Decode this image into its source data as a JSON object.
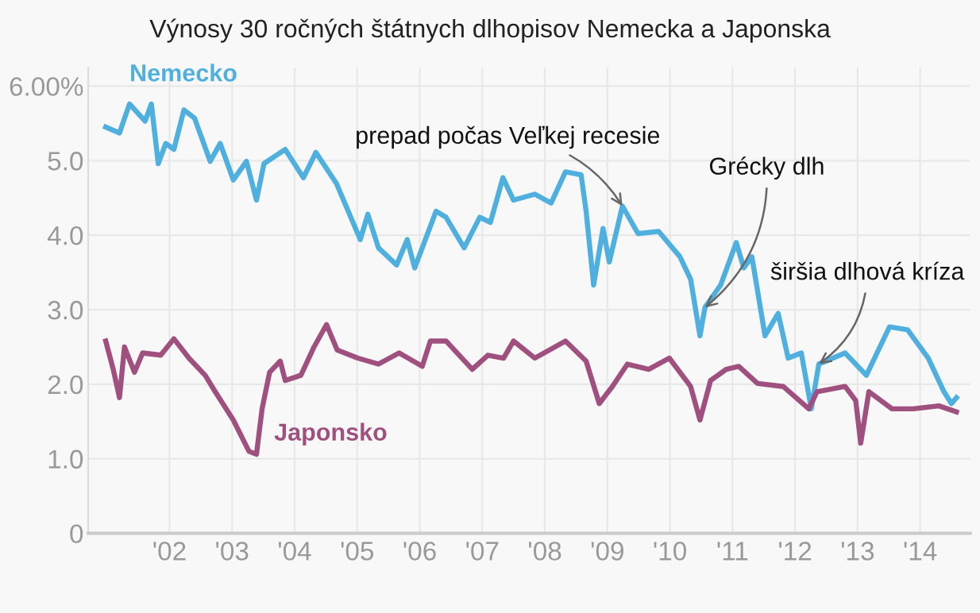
{
  "chart_data": {
    "type": "line",
    "title": "Výnosy 30 ročných štátnych dlhopisov Nemecka a Japonska",
    "series": [
      {
        "name": "Nemecko",
        "color": "#4fb0e0",
        "x": [
          2000.98,
          2001.2,
          2001.36,
          2001.61,
          2001.71,
          2001.82,
          2001.94,
          2002.07,
          2002.23,
          2002.4,
          2002.65,
          2002.81,
          2003.02,
          2003.23,
          2003.39,
          2003.51,
          2003.85,
          2004.14,
          2004.34,
          2004.67,
          2005.05,
          2005.17,
          2005.34,
          2005.63,
          2005.8,
          2005.92,
          2006.26,
          2006.42,
          2006.71,
          2006.96,
          2007.13,
          2007.33,
          2007.5,
          2007.84,
          2008.1,
          2008.33,
          2008.58,
          2008.66,
          2008.78,
          2008.93,
          2009.03,
          2009.24,
          2009.49,
          2009.82,
          2010.16,
          2010.33,
          2010.48,
          2010.56,
          2010.81,
          2011.06,
          2011.18,
          2011.31,
          2011.52,
          2011.73,
          2011.89,
          2012.1,
          2012.26,
          2012.38,
          2012.8,
          2013.14,
          2013.51,
          2013.8,
          2014.13,
          2014.38,
          2014.5,
          2014.58
        ],
        "values": [
          5.45,
          5.37,
          5.76,
          5.53,
          5.76,
          4.96,
          5.23,
          5.15,
          5.68,
          5.57,
          4.99,
          5.23,
          4.74,
          4.99,
          4.47,
          4.96,
          5.15,
          4.77,
          5.11,
          4.69,
          3.94,
          4.28,
          3.83,
          3.6,
          3.94,
          3.56,
          4.32,
          4.24,
          3.83,
          4.24,
          4.17,
          4.77,
          4.47,
          4.55,
          4.43,
          4.85,
          4.81,
          4.32,
          3.33,
          4.09,
          3.64,
          4.39,
          4.02,
          4.05,
          3.71,
          3.41,
          2.65,
          3.03,
          3.33,
          3.9,
          3.56,
          3.71,
          2.65,
          2.95,
          2.35,
          2.42,
          1.67,
          2.27,
          2.42,
          2.12,
          2.77,
          2.73,
          2.35,
          1.9,
          1.74,
          1.82
        ]
      },
      {
        "name": "Japonsko",
        "color": "#a0507f",
        "x": [
          2000.98,
          2001.1,
          2001.2,
          2001.28,
          2001.44,
          2001.57,
          2001.86,
          2002.07,
          2002.31,
          2002.57,
          2002.73,
          2003.02,
          2003.27,
          2003.39,
          2003.48,
          2003.6,
          2003.77,
          2003.85,
          2004.1,
          2004.31,
          2004.51,
          2004.68,
          2005.01,
          2005.34,
          2005.67,
          2006.04,
          2006.17,
          2006.42,
          2006.84,
          2007.09,
          2007.34,
          2007.5,
          2007.84,
          2008.33,
          2008.66,
          2008.87,
          2009.08,
          2009.32,
          2009.66,
          2009.99,
          2010.33,
          2010.48,
          2010.65,
          2010.9,
          2011.1,
          2011.4,
          2011.81,
          2012.22,
          2012.35,
          2012.8,
          2012.97,
          2013.05,
          2013.18,
          2013.55,
          2013.89,
          2014.3,
          2014.58
        ],
        "values": [
          2.58,
          2.2,
          1.82,
          2.5,
          2.16,
          2.42,
          2.39,
          2.61,
          2.35,
          2.12,
          1.9,
          1.52,
          1.1,
          1.06,
          1.67,
          2.16,
          2.31,
          2.05,
          2.12,
          2.5,
          2.8,
          2.46,
          2.35,
          2.27,
          2.42,
          2.24,
          2.58,
          2.58,
          2.2,
          2.39,
          2.35,
          2.58,
          2.35,
          2.58,
          2.31,
          1.74,
          1.97,
          2.27,
          2.2,
          2.35,
          1.97,
          1.52,
          2.05,
          2.2,
          2.24,
          2.01,
          1.97,
          1.67,
          1.9,
          1.97,
          1.78,
          1.21,
          1.9,
          1.67,
          1.67,
          1.71,
          1.63
        ]
      }
    ],
    "xlim": [
      2000.7,
      2014.8
    ],
    "ylim": [
      0,
      6.25
    ],
    "xticks": [
      {
        "value": 2002,
        "label": "'02"
      },
      {
        "value": 2003,
        "label": "'03"
      },
      {
        "value": 2004,
        "label": "'04"
      },
      {
        "value": 2005,
        "label": "'05"
      },
      {
        "value": 2006,
        "label": "'06"
      },
      {
        "value": 2007,
        "label": "'07"
      },
      {
        "value": 2008,
        "label": "'08"
      },
      {
        "value": 2009,
        "label": "'09"
      },
      {
        "value": 2010,
        "label": "'10"
      },
      {
        "value": 2011,
        "label": "'11"
      },
      {
        "value": 2012,
        "label": "'12"
      },
      {
        "value": 2013,
        "label": "'13"
      },
      {
        "value": 2014,
        "label": "'14"
      }
    ],
    "yticks": [
      0,
      {
        "value": 1,
        "label": "1.0"
      },
      {
        "value": 2,
        "label": "2.0"
      },
      {
        "value": 3,
        "label": "3.0"
      },
      {
        "value": 4,
        "label": "4.0"
      },
      {
        "value": 5,
        "label": "5.0"
      },
      {
        "value": 6,
        "label": "6.00%"
      }
    ],
    "grid": true,
    "line_style": "solid",
    "marker": "none",
    "annotations": [
      {
        "text": "prepad počas Veľkej recesie",
        "x": 2009.24,
        "y": 4.39
      },
      {
        "text": "Grécky dlh",
        "x": 2010.56,
        "y": 3.03
      },
      {
        "text": "širšia dlhová kríza",
        "x": 2012.38,
        "y": 2.27
      }
    ]
  }
}
